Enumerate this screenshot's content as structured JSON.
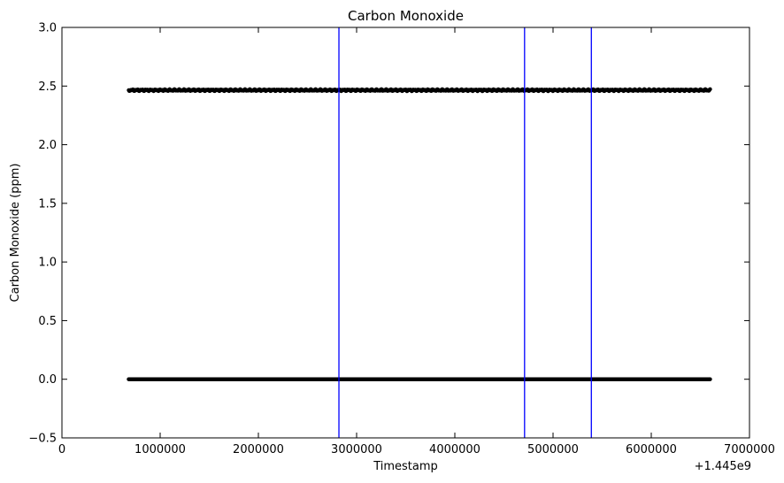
{
  "chart_data": {
    "type": "scatter",
    "title": "Carbon Monoxide",
    "xlabel": "Timestamp",
    "ylabel": "Carbon Monoxide (ppm)",
    "x_offset_label": "+1.445e9",
    "xlim": [
      0,
      7000000
    ],
    "ylim": [
      -0.5,
      3.0
    ],
    "x_ticks": [
      0,
      1000000,
      2000000,
      3000000,
      4000000,
      5000000,
      6000000,
      7000000
    ],
    "x_tick_labels": [
      "0",
      "1000000",
      "2000000",
      "3000000",
      "4000000",
      "5000000",
      "6000000",
      "7000000"
    ],
    "y_ticks": [
      -0.5,
      0.0,
      0.5,
      1.0,
      1.5,
      2.0,
      2.5,
      3.0
    ],
    "y_tick_labels": [
      "−0.5",
      "0.0",
      "0.5",
      "1.0",
      "1.5",
      "2.0",
      "2.5",
      "3.0"
    ],
    "grid": false,
    "series": [
      {
        "color": "#000000",
        "marker": "point",
        "x_start": 680000,
        "x_end": 6600000,
        "y": 0.0
      },
      {
        "color": "#000000",
        "marker": "point",
        "x_start": 680000,
        "x_end": 6600000,
        "y": 2.465
      }
    ],
    "vertical_lines": {
      "color": "#0000ff",
      "x": [
        2820000,
        4710000,
        5390000
      ]
    }
  }
}
